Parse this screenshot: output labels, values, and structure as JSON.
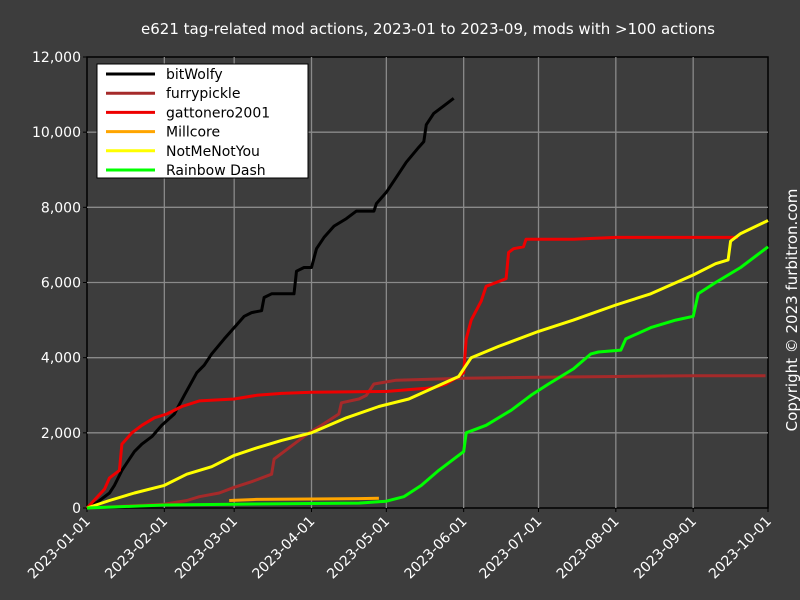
{
  "chart_data": {
    "type": "line",
    "title": "e621 tag-related mod actions, 2023-01 to 2023-09, mods with >100 actions",
    "xlabel": "",
    "ylabel": "",
    "xlim": [
      "2023-01-01",
      "2023-10-01"
    ],
    "ylim": [
      0,
      12000
    ],
    "x_ticks": [
      "2023-01-01",
      "2023-02-01",
      "2023-03-01",
      "2023-04-01",
      "2023-05-01",
      "2023-06-01",
      "2023-07-01",
      "2023-08-01",
      "2023-09-01",
      "2023-10-01"
    ],
    "y_ticks": [
      0,
      2000,
      4000,
      6000,
      8000,
      10000,
      12000
    ],
    "y_tick_labels": [
      "0",
      "2,000",
      "4,000",
      "6,000",
      "8,000",
      "10,000",
      "12,000"
    ],
    "grid": true,
    "legend_position": "top-left",
    "copyright": "Copyright © 2023 furbitron.com",
    "series": [
      {
        "name": "bitWolfy",
        "color": "#000000",
        "points": [
          [
            "2023-01-01",
            0
          ],
          [
            "2023-01-05",
            150
          ],
          [
            "2023-01-10",
            400
          ],
          [
            "2023-01-12",
            600
          ],
          [
            "2023-01-15",
            1000
          ],
          [
            "2023-01-18",
            1300
          ],
          [
            "2023-01-20",
            1500
          ],
          [
            "2023-01-23",
            1700
          ],
          [
            "2023-01-27",
            1900
          ],
          [
            "2023-01-31",
            2200
          ],
          [
            "2023-02-05",
            2500
          ],
          [
            "2023-02-09",
            3000
          ],
          [
            "2023-02-14",
            3600
          ],
          [
            "2023-02-17",
            3800
          ],
          [
            "2023-02-20",
            4100
          ],
          [
            "2023-02-25",
            4500
          ],
          [
            "2023-03-01",
            4800
          ],
          [
            "2023-03-05",
            5100
          ],
          [
            "2023-03-08",
            5200
          ],
          [
            "2023-03-12",
            5250
          ],
          [
            "2023-03-13",
            5600
          ],
          [
            "2023-03-16",
            5700
          ],
          [
            "2023-03-25",
            5700
          ],
          [
            "2023-03-26",
            6300
          ],
          [
            "2023-03-29",
            6400
          ],
          [
            "2023-04-01",
            6400
          ],
          [
            "2023-04-03",
            6900
          ],
          [
            "2023-04-06",
            7200
          ],
          [
            "2023-04-10",
            7500
          ],
          [
            "2023-04-15",
            7700
          ],
          [
            "2023-04-19",
            7900
          ],
          [
            "2023-04-26",
            7900
          ],
          [
            "2023-04-27",
            8100
          ],
          [
            "2023-05-01",
            8400
          ],
          [
            "2023-05-05",
            8800
          ],
          [
            "2023-05-09",
            9200
          ],
          [
            "2023-05-14",
            9600
          ],
          [
            "2023-05-16",
            9750
          ],
          [
            "2023-05-17",
            10200
          ],
          [
            "2023-05-20",
            10500
          ],
          [
            "2023-05-24",
            10700
          ],
          [
            "2023-05-28",
            10900
          ]
        ]
      },
      {
        "name": "furrypickle",
        "color": "#a52a2a",
        "points": [
          [
            "2023-01-01",
            0
          ],
          [
            "2023-02-01",
            100
          ],
          [
            "2023-02-10",
            200
          ],
          [
            "2023-02-15",
            300
          ],
          [
            "2023-02-23",
            400
          ],
          [
            "2023-03-01",
            550
          ],
          [
            "2023-03-08",
            700
          ],
          [
            "2023-03-16",
            900
          ],
          [
            "2023-03-17",
            1300
          ],
          [
            "2023-03-25",
            1700
          ],
          [
            "2023-03-31",
            2000
          ],
          [
            "2023-04-05",
            2200
          ],
          [
            "2023-04-12",
            2500
          ],
          [
            "2023-04-13",
            2800
          ],
          [
            "2023-04-20",
            2900
          ],
          [
            "2023-04-23",
            3000
          ],
          [
            "2023-04-26",
            3300
          ],
          [
            "2023-05-05",
            3400
          ],
          [
            "2023-06-01",
            3450
          ],
          [
            "2023-07-01",
            3480
          ],
          [
            "2023-08-01",
            3500
          ],
          [
            "2023-09-01",
            3520
          ],
          [
            "2023-09-30",
            3520
          ]
        ]
      },
      {
        "name": "gattonero2001",
        "color": "#ee0000",
        "points": [
          [
            "2023-01-01",
            0
          ],
          [
            "2023-01-08",
            500
          ],
          [
            "2023-01-10",
            800
          ],
          [
            "2023-01-14",
            1000
          ],
          [
            "2023-01-15",
            1700
          ],
          [
            "2023-01-19",
            2000
          ],
          [
            "2023-01-23",
            2200
          ],
          [
            "2023-01-28",
            2400
          ],
          [
            "2023-02-02",
            2500
          ],
          [
            "2023-02-08",
            2700
          ],
          [
            "2023-02-15",
            2850
          ],
          [
            "2023-03-01",
            2900
          ],
          [
            "2023-03-10",
            3000
          ],
          [
            "2023-03-20",
            3050
          ],
          [
            "2023-04-01",
            3080
          ],
          [
            "2023-05-01",
            3100
          ],
          [
            "2023-05-10",
            3150
          ],
          [
            "2023-05-20",
            3200
          ],
          [
            "2023-05-25",
            3300
          ],
          [
            "2023-05-30",
            3500
          ],
          [
            "2023-06-01",
            3600
          ],
          [
            "2023-06-02",
            4500
          ],
          [
            "2023-06-04",
            5000
          ],
          [
            "2023-06-08",
            5500
          ],
          [
            "2023-06-10",
            5900
          ],
          [
            "2023-06-14",
            6000
          ],
          [
            "2023-06-18",
            6100
          ],
          [
            "2023-06-19",
            6800
          ],
          [
            "2023-06-21",
            6900
          ],
          [
            "2023-06-25",
            6950
          ],
          [
            "2023-06-26",
            7150
          ],
          [
            "2023-07-15",
            7150
          ],
          [
            "2023-08-01",
            7200
          ],
          [
            "2023-08-20",
            7200
          ],
          [
            "2023-09-01",
            7200
          ],
          [
            "2023-09-19",
            7200
          ]
        ]
      },
      {
        "name": "Millcore",
        "color": "#ffa500",
        "points": [
          [
            "2023-02-27",
            200
          ],
          [
            "2023-03-10",
            230
          ],
          [
            "2023-04-01",
            240
          ],
          [
            "2023-04-20",
            250
          ],
          [
            "2023-04-28",
            260
          ]
        ]
      },
      {
        "name": "NotMeNotYou",
        "color": "#ffff00",
        "points": [
          [
            "2023-01-01",
            0
          ],
          [
            "2023-01-10",
            200
          ],
          [
            "2023-01-20",
            400
          ],
          [
            "2023-02-01",
            600
          ],
          [
            "2023-02-10",
            900
          ],
          [
            "2023-02-20",
            1100
          ],
          [
            "2023-03-01",
            1400
          ],
          [
            "2023-03-10",
            1600
          ],
          [
            "2023-03-20",
            1800
          ],
          [
            "2023-04-01",
            2000
          ],
          [
            "2023-04-15",
            2400
          ],
          [
            "2023-04-28",
            2700
          ],
          [
            "2023-05-10",
            2900
          ],
          [
            "2023-05-20",
            3200
          ],
          [
            "2023-05-30",
            3500
          ],
          [
            "2023-06-01",
            3700
          ],
          [
            "2023-06-04",
            4000
          ],
          [
            "2023-06-15",
            4300
          ],
          [
            "2023-07-01",
            4700
          ],
          [
            "2023-07-15",
            5000
          ],
          [
            "2023-08-01",
            5400
          ],
          [
            "2023-08-15",
            5700
          ],
          [
            "2023-09-01",
            6200
          ],
          [
            "2023-09-10",
            6500
          ],
          [
            "2023-09-15",
            6600
          ],
          [
            "2023-09-16",
            7100
          ],
          [
            "2023-09-20",
            7300
          ],
          [
            "2023-10-01",
            7650
          ]
        ]
      },
      {
        "name": "Rainbow Dash",
        "color": "#00ff00",
        "points": [
          [
            "2023-01-01",
            0
          ],
          [
            "2023-02-01",
            80
          ],
          [
            "2023-03-01",
            100
          ],
          [
            "2023-04-01",
            120
          ],
          [
            "2023-04-20",
            130
          ],
          [
            "2023-05-01",
            180
          ],
          [
            "2023-05-08",
            300
          ],
          [
            "2023-05-15",
            600
          ],
          [
            "2023-05-22",
            1000
          ],
          [
            "2023-05-28",
            1300
          ],
          [
            "2023-06-01",
            1500
          ],
          [
            "2023-06-02",
            2000
          ],
          [
            "2023-06-10",
            2200
          ],
          [
            "2023-06-20",
            2600
          ],
          [
            "2023-06-28",
            3000
          ],
          [
            "2023-07-05",
            3300
          ],
          [
            "2023-07-15",
            3700
          ],
          [
            "2023-07-22",
            4100
          ],
          [
            "2023-07-25",
            4150
          ],
          [
            "2023-08-03",
            4200
          ],
          [
            "2023-08-05",
            4500
          ],
          [
            "2023-08-15",
            4800
          ],
          [
            "2023-08-25",
            5000
          ],
          [
            "2023-09-01",
            5100
          ],
          [
            "2023-09-03",
            5700
          ],
          [
            "2023-09-10",
            6000
          ],
          [
            "2023-09-20",
            6400
          ],
          [
            "2023-10-01",
            6950
          ]
        ]
      }
    ]
  }
}
